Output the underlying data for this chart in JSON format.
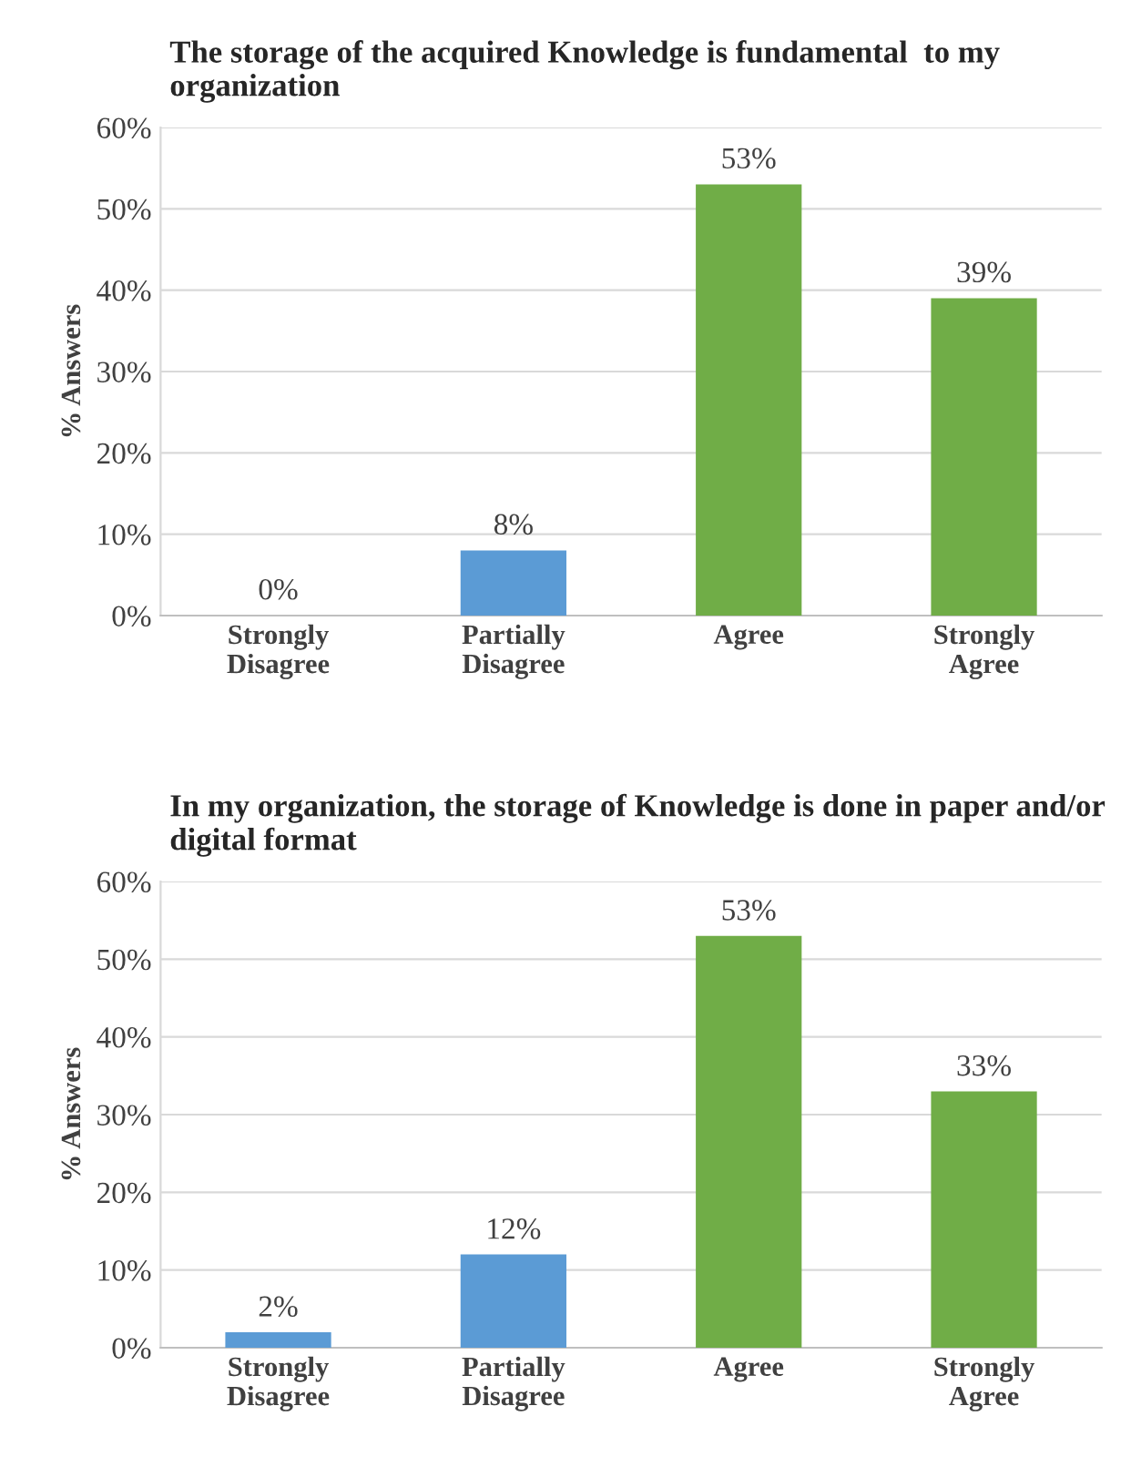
{
  "chart_data": [
    {
      "type": "bar",
      "title": "The storage of the acquired Knowledge is fundamental  to my organization",
      "ylabel": "% Answers",
      "categories": [
        "Strongly\nDisagree",
        "Partially\nDisagree",
        "Agree",
        "Strongly\nAgree"
      ],
      "values": [
        0,
        8,
        53,
        39
      ],
      "value_labels": [
        "0%",
        "8%",
        "53%",
        "39%"
      ],
      "colors": [
        "#5b9bd5",
        "#5b9bd5",
        "#70ad47",
        "#70ad47"
      ],
      "ylim": [
        0,
        60
      ],
      "yticks": [
        {
          "value": 0,
          "label": "0%"
        },
        {
          "value": 10,
          "label": "10%"
        },
        {
          "value": 20,
          "label": "20%"
        },
        {
          "value": 30,
          "label": "30%"
        },
        {
          "value": 40,
          "label": "40%"
        },
        {
          "value": 50,
          "label": "50%"
        },
        {
          "value": 60,
          "label": "60%"
        }
      ],
      "grid": "y"
    },
    {
      "type": "bar",
      "title": "In my organization, the storage of Knowledge is done in paper and/or digital format",
      "ylabel": "% Answers",
      "categories": [
        "Strongly\nDisagree",
        "Partially\nDisagree",
        "Agree",
        "Strongly\nAgree"
      ],
      "values": [
        2,
        12,
        53,
        33
      ],
      "value_labels": [
        "2%",
        "12%",
        "53%",
        "33%"
      ],
      "colors": [
        "#5b9bd5",
        "#5b9bd5",
        "#70ad47",
        "#70ad47"
      ],
      "ylim": [
        0,
        60
      ],
      "yticks": [
        {
          "value": 0,
          "label": "0%"
        },
        {
          "value": 10,
          "label": "10%"
        },
        {
          "value": 20,
          "label": "20%"
        },
        {
          "value": 30,
          "label": "30%"
        },
        {
          "value": 40,
          "label": "40%"
        },
        {
          "value": 50,
          "label": "50%"
        },
        {
          "value": 60,
          "label": "60%"
        }
      ],
      "grid": "y"
    }
  ]
}
